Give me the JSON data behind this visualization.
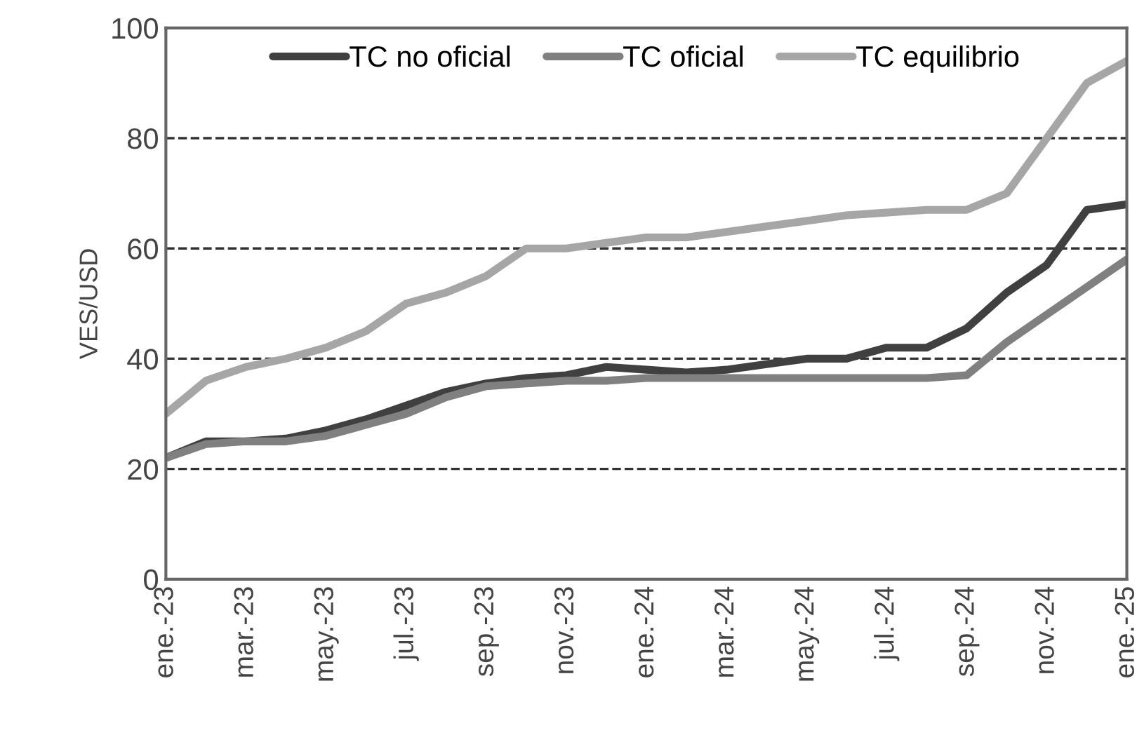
{
  "chart_data": {
    "type": "line",
    "ylabel": "VES/USD",
    "categories": [
      "ene.-23",
      null,
      "mar.-23",
      null,
      "may.-23",
      null,
      "jul.-23",
      null,
      "sep.-23",
      null,
      "nov.-23",
      null,
      "ene.-24",
      null,
      "mar.-24",
      null,
      "may.-24",
      null,
      "jul.-24",
      null,
      "sep.-24",
      null,
      "nov.-24",
      null,
      "ene.-25"
    ],
    "series": [
      {
        "name": "TC no oficial",
        "color": "#404040",
        "values": [
          22,
          25,
          25,
          25.5,
          27,
          29,
          31.5,
          34,
          35.5,
          36.5,
          37,
          38.5,
          38,
          37.5,
          38,
          39,
          40,
          40,
          42,
          42,
          45.5,
          52,
          57,
          67,
          68
        ]
      },
      {
        "name": "TC oficial",
        "color": "#808080",
        "values": [
          22,
          24.5,
          25,
          25,
          26,
          28,
          30,
          33,
          35,
          35.5,
          36,
          36,
          36.5,
          36.5,
          36.5,
          36.5,
          36.5,
          36.5,
          36.5,
          36.5,
          37,
          43,
          48,
          53,
          58
        ]
      },
      {
        "name": "TC equilibrio",
        "color": "#a6a6a6",
        "values": [
          30,
          36,
          38.5,
          40,
          42,
          45,
          50,
          52,
          55,
          60,
          60,
          61,
          62,
          62,
          63,
          64,
          65,
          66,
          66.5,
          67,
          67,
          70,
          80,
          90,
          94
        ]
      }
    ],
    "ylim": [
      0,
      100
    ],
    "yticks": [
      0,
      20,
      40,
      60,
      80,
      100
    ],
    "grid": "y",
    "line_style": "solid",
    "marker": "none",
    "legend": "top"
  }
}
